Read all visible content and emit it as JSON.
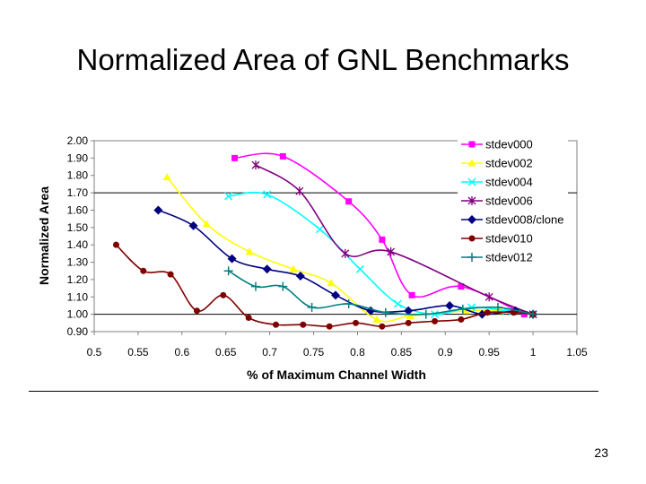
{
  "slide": {
    "title": "Normalized Area of GNL Benchmarks",
    "page_number": "23"
  },
  "chart_data": {
    "type": "line",
    "title": "",
    "xlabel": "% of Maximum Channel Width",
    "ylabel": "Normalized Area",
    "xlim": [
      0.5,
      1.05
    ],
    "ylim": [
      0.9,
      2.0
    ],
    "x_ticks": [
      "0.5",
      "0.55",
      "0.6",
      "0.65",
      "0.7",
      "0.75",
      "0.8",
      "0.85",
      "0.9",
      "0.95",
      "1",
      "1.05"
    ],
    "y_ticks": [
      "0.90",
      "1.00",
      "1.10",
      "1.20",
      "1.30",
      "1.40",
      "1.50",
      "1.60",
      "1.70",
      "1.80",
      "1.90",
      "2.00"
    ],
    "grid": false,
    "legend": "top-right",
    "series": [
      {
        "name": "stdev000",
        "color": "#ff00ff",
        "marker": "square",
        "x": [
          0.66,
          0.715,
          0.79,
          0.828,
          0.862,
          0.918,
          0.99
        ],
        "y": [
          1.9,
          1.91,
          1.65,
          1.43,
          1.11,
          1.16,
          1.0
        ]
      },
      {
        "name": "stdev002",
        "color": "#ffff00",
        "marker": "triangle",
        "x": [
          0.583,
          0.628,
          0.677,
          0.727,
          0.77,
          0.822,
          0.86,
          0.924,
          0.962,
          1.0
        ],
        "y": [
          1.79,
          1.52,
          1.36,
          1.26,
          1.18,
          0.97,
          0.99,
          1.02,
          1.02,
          1.0
        ]
      },
      {
        "name": "stdev004",
        "color": "#00ffff",
        "marker": "x",
        "x": [
          0.653,
          0.697,
          0.757,
          0.803,
          0.846,
          0.888,
          0.93,
          0.97,
          1.0
        ],
        "y": [
          1.68,
          1.69,
          1.49,
          1.26,
          1.06,
          1.0,
          1.04,
          1.02,
          1.0
        ]
      },
      {
        "name": "stdev006",
        "color": "#800080",
        "marker": "star",
        "x": [
          0.684,
          0.734,
          0.786,
          0.838,
          0.95,
          1.0
        ],
        "y": [
          1.86,
          1.71,
          1.35,
          1.36,
          1.1,
          1.0
        ]
      },
      {
        "name": "stdev008/clone",
        "color": "#000080",
        "marker": "diamond",
        "x": [
          0.573,
          0.613,
          0.657,
          0.697,
          0.735,
          0.775,
          0.815,
          0.858,
          0.905,
          0.942,
          0.98,
          1.0
        ],
        "y": [
          1.6,
          1.51,
          1.32,
          1.26,
          1.22,
          1.11,
          1.02,
          1.02,
          1.05,
          1.0,
          1.02,
          1.0
        ]
      },
      {
        "name": "stdev010",
        "color": "#800000",
        "marker": "circle",
        "x": [
          0.525,
          0.556,
          0.587,
          0.617,
          0.647,
          0.676,
          0.707,
          0.738,
          0.768,
          0.798,
          0.828,
          0.858,
          0.888,
          0.918,
          0.948,
          0.978,
          1.0
        ],
        "y": [
          1.4,
          1.25,
          1.23,
          1.02,
          1.11,
          0.98,
          0.94,
          0.94,
          0.93,
          0.95,
          0.93,
          0.95,
          0.96,
          0.97,
          1.01,
          1.01,
          1.0
        ]
      },
      {
        "name": "stdev012",
        "color": "#008080",
        "marker": "plus",
        "x": [
          0.653,
          0.684,
          0.715,
          0.748,
          0.79,
          0.832,
          0.878,
          0.92,
          0.96,
          1.0
        ],
        "y": [
          1.25,
          1.16,
          1.16,
          1.04,
          1.06,
          1.01,
          1.0,
          1.03,
          1.04,
          1.0
        ]
      }
    ]
  }
}
